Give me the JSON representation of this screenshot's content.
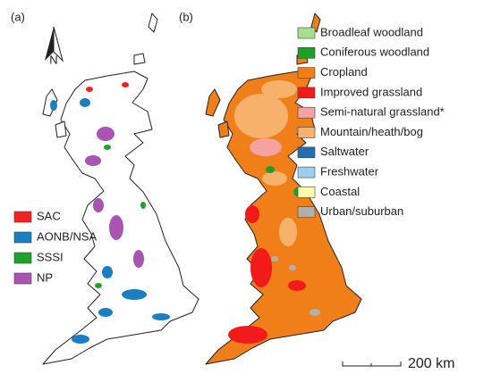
{
  "panel_a": {
    "label": "(a)",
    "north_label": "N",
    "legend": [
      {
        "label": "SAC",
        "color": "#f52020"
      },
      {
        "label": "AONB/NSA",
        "color": "#1a7fc1"
      },
      {
        "label": "SSSI",
        "color": "#1ba32a"
      },
      {
        "label": "NP",
        "color": "#a953b2"
      }
    ]
  },
  "panel_b": {
    "label": "(b)",
    "scale_bar_label": "200 km",
    "legend": [
      {
        "label": "Broadleaf woodland",
        "color": "#a6e08a"
      },
      {
        "label": "Coniferous woodland",
        "color": "#1f9e2a"
      },
      {
        "label": "Cropland",
        "color": "#f07f1a"
      },
      {
        "label": "Improved grassland",
        "color": "#f21a1a"
      },
      {
        "label": "Semi-natural grassland*",
        "color": "#f5a2a2"
      },
      {
        "label": "Mountain/heath/bog",
        "color": "#f6b26b"
      },
      {
        "label": "Saltwater",
        "color": "#1f6fb5"
      },
      {
        "label": "Freshwater",
        "color": "#9ccfee"
      },
      {
        "label": "Coastal",
        "color": "#ffffb0"
      },
      {
        "label": "Urban/suburban",
        "color": "#b0b0b0"
      }
    ]
  }
}
